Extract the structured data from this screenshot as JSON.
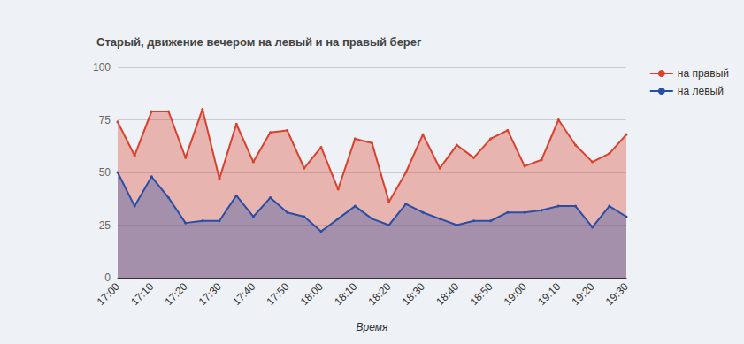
{
  "chart_data": {
    "type": "area",
    "title": "Старый, движение вечером на левый и на правый берег",
    "x_label": "Время",
    "categories": [
      "17:00",
      null,
      "17:10",
      null,
      "17:20",
      null,
      "17:30",
      null,
      "17:40",
      null,
      "17:50",
      null,
      "18:00",
      null,
      "18:10",
      null,
      "18:20",
      null,
      "18:30",
      null,
      "18:40",
      null,
      "18:50",
      null,
      "19:00",
      null,
      "19:10",
      null,
      "19:20",
      null,
      "19:30"
    ],
    "series": [
      {
        "name": "на правый",
        "color": "#d9412d",
        "values": [
          74,
          58,
          79,
          79,
          57,
          80,
          47,
          73,
          55,
          69,
          70,
          52,
          62,
          42,
          66,
          64,
          36,
          50,
          68,
          52,
          63,
          57,
          66,
          70,
          53,
          56,
          75,
          63,
          55,
          59,
          68
        ]
      },
      {
        "name": "на левый",
        "color": "#2a4ea6",
        "values": [
          50,
          34,
          48,
          38,
          26,
          27,
          27,
          39,
          29,
          38,
          31,
          29,
          22,
          28,
          34,
          28,
          25,
          35,
          31,
          28,
          25,
          27,
          27,
          31,
          31,
          32,
          34,
          34,
          24,
          34,
          29
        ]
      }
    ],
    "ylim": [
      0,
      100
    ],
    "yticks": [
      0,
      25,
      50,
      75,
      100
    ],
    "grid": true,
    "legend": "top-right",
    "marker": "circle"
  }
}
